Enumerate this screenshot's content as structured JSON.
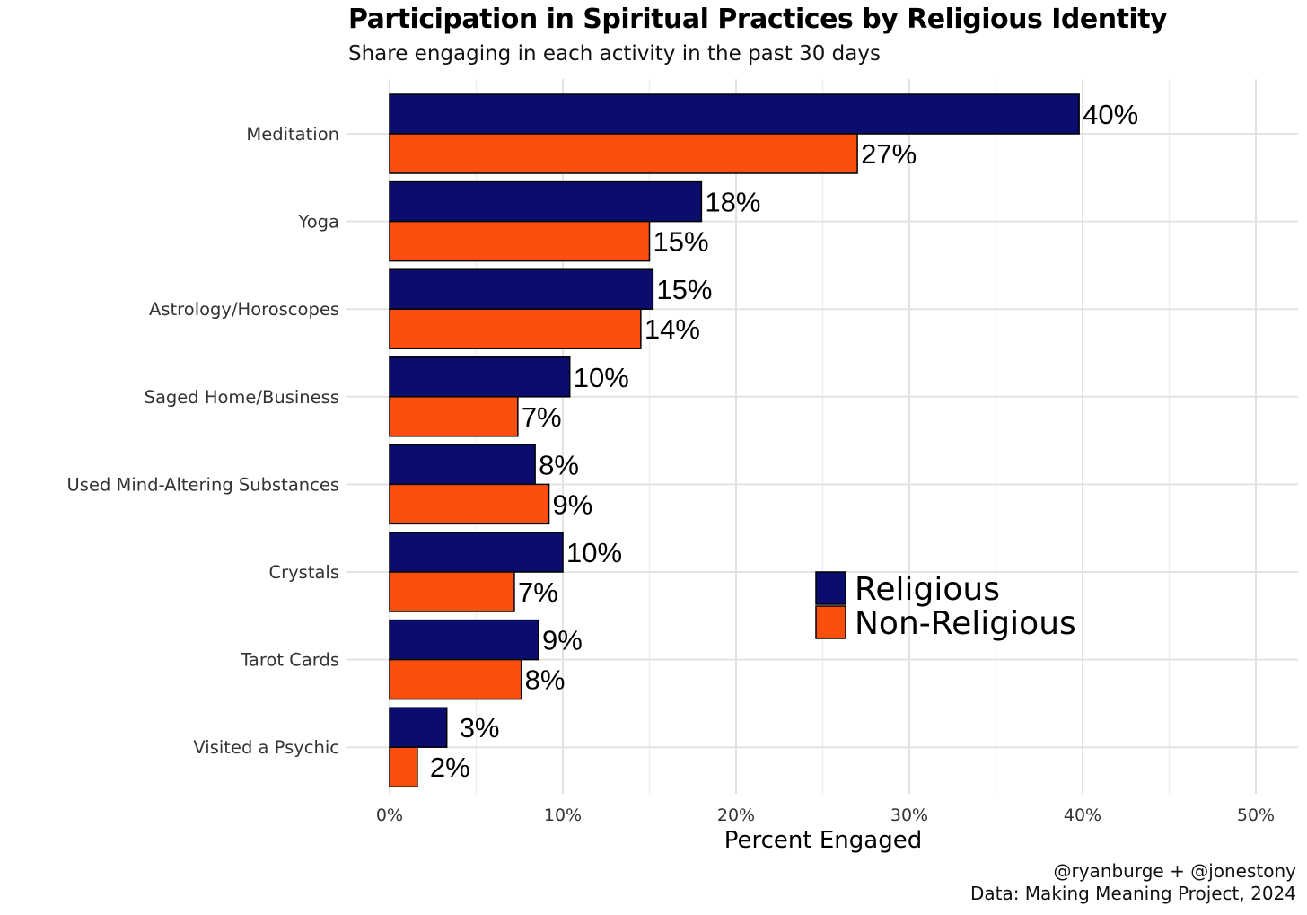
{
  "chart_data": {
    "type": "bar",
    "orientation": "horizontal",
    "title": "Participation in Spiritual Practices by Religious Identity",
    "subtitle": "Share engaging in each activity in the past 30 days",
    "xlabel": "Percent Engaged",
    "ylabel": "",
    "xlim": [
      0,
      0.52
    ],
    "x_ticks": [
      0,
      0.1,
      0.2,
      0.3,
      0.4,
      0.5
    ],
    "x_tick_labels": [
      "0%",
      "10%",
      "20%",
      "30%",
      "40%",
      "50%"
    ],
    "grid": true,
    "legend_position": "inside-right",
    "categories": [
      "Meditation",
      "Yoga",
      "Astrology/Horoscopes",
      "Saged Home/Business",
      "Used Mind-Altering Substances",
      "Crystals",
      "Tarot Cards",
      "Visited a Psychic"
    ],
    "series": [
      {
        "name": "Religious",
        "color": "#0B0D6E",
        "values": [
          0.398,
          0.18,
          0.152,
          0.104,
          0.084,
          0.1,
          0.086,
          0.033
        ],
        "labels": [
          "40%",
          "18%",
          "15%",
          "10%",
          "8%",
          "10%",
          "9%",
          "3%"
        ]
      },
      {
        "name": "Non-Religious",
        "color": "#FC4E0E",
        "values": [
          0.27,
          0.15,
          0.145,
          0.074,
          0.092,
          0.072,
          0.076,
          0.016
        ],
        "labels": [
          "27%",
          "15%",
          "14%",
          "7%",
          "9%",
          "7%",
          "8%",
          "2%"
        ]
      }
    ],
    "caption": [
      "@ryanburge + @jonestony",
      "Data: Making Meaning Project, 2024"
    ]
  }
}
